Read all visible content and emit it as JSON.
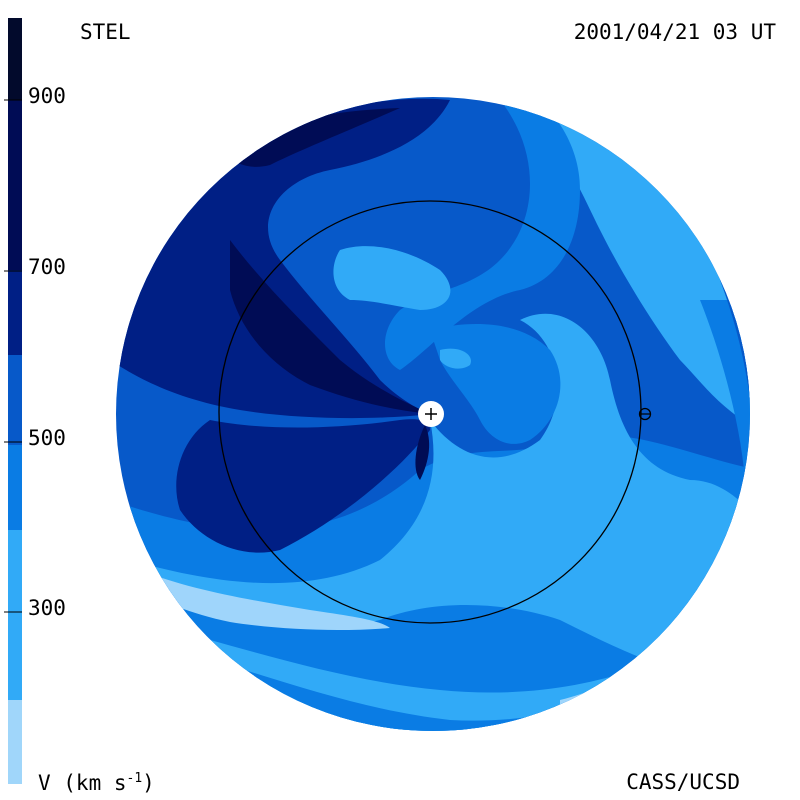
{
  "header": {
    "left_title": "STEL",
    "right_title": "2001/04/21 03 UT"
  },
  "footer": {
    "left_label_main": "V (km s",
    "left_label_exp": "-1",
    "left_label_close": ")",
    "right_label": "CASS/UCSD"
  },
  "colorbar": {
    "ticks": [
      "900",
      "700",
      "500",
      "300"
    ],
    "colors": [
      "#a0d6fa",
      "#31aaf7",
      "#0a7ce4",
      "#0759c9",
      "#03338e",
      "#001f85",
      "#000c55",
      "#020a2c"
    ]
  },
  "map": {
    "colors": {
      "lightest": "#9fd5fb",
      "light": "#31aaf7",
      "medium": "#0a7ce4",
      "medium_dark": "#0759c9",
      "dark": "#05359a",
      "darker": "#001f85",
      "darkest": "#000c55"
    },
    "sun_marker": "+",
    "earth_marker": "earth-orbit-marker"
  }
}
